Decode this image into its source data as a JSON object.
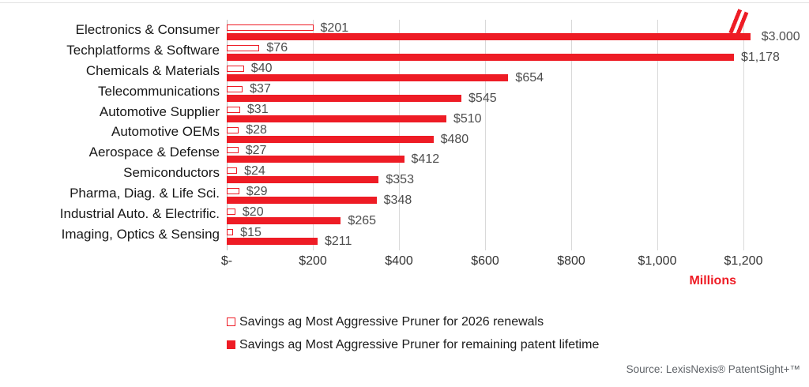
{
  "footer": {
    "source": "Source: LexisNexis® PatentSight+™"
  },
  "chart_data": {
    "type": "bar",
    "orientation": "horizontal",
    "title": "",
    "unit_label": "Millions",
    "categories": [
      "Electronics & Consumer",
      "Techplatforms & Software",
      "Chemicals & Materials",
      "Telecommunications",
      "Automotive Supplier",
      "Automotive OEMs",
      "Aerospace & Defense",
      "Semiconductors",
      "Pharma, Diag. & Life Sci.",
      "Industrial Auto. & Electrific.",
      "Imaging, Optics & Sensing"
    ],
    "series": [
      {
        "name": "Savings ag Most Aggressive Pruner for 2026 renewals",
        "style": "hollow",
        "values": [
          201,
          76,
          40,
          37,
          31,
          28,
          27,
          24,
          29,
          20,
          15
        ],
        "labels": [
          "$201",
          "$76",
          "$40",
          "$37",
          "$31",
          "$28",
          "$27",
          "$24",
          "$29",
          "$20",
          "$15"
        ]
      },
      {
        "name": "Savings ag Most Aggressive Pruner for remaining patent lifetime",
        "style": "solid",
        "values": [
          3000,
          1178,
          654,
          545,
          510,
          480,
          412,
          353,
          348,
          265,
          211
        ],
        "labels": [
          "$3.000",
          "$1,178",
          "$654",
          "$545",
          "$510",
          "$480",
          "$412",
          "$353",
          "$348",
          "$265",
          "$211"
        ]
      }
    ],
    "x_ticks": {
      "labels": [
        "$-",
        "$200",
        "$400",
        "$600",
        "$800",
        "$1,000",
        "$1,200"
      ],
      "values": [
        0,
        200,
        400,
        600,
        800,
        1000,
        1200
      ]
    },
    "xlim": [
      0,
      1200
    ],
    "grid": "vertical",
    "legend_position": "bottom-left",
    "truncation": {
      "series_index": 1,
      "row_index": 0,
      "display_value": 1216
    },
    "colors": {
      "bar_red": "#ee1c25",
      "gridline": "#d9d9d9",
      "value_label": "#4d4d4d",
      "tick_label": "#333333",
      "category_label": "#171717"
    }
  }
}
